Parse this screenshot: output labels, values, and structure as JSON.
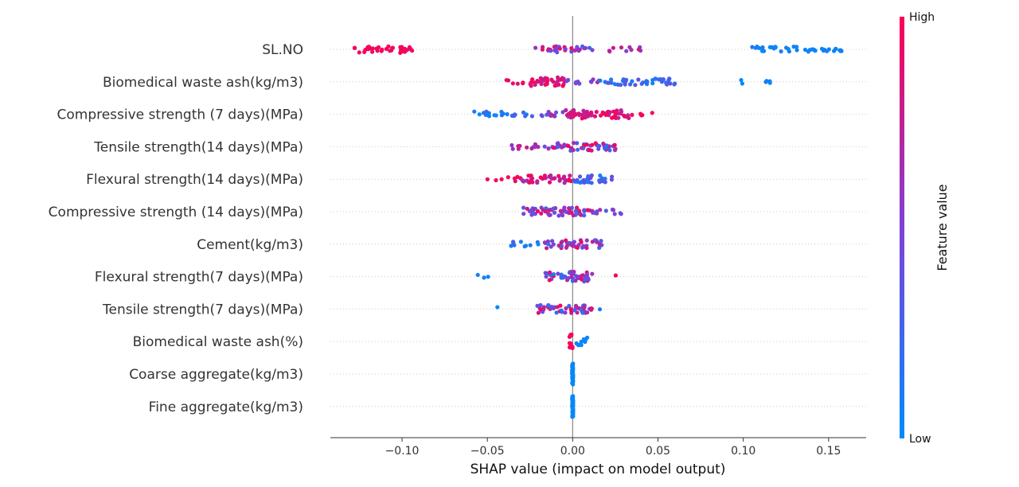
{
  "chart_data": {
    "type": "scatter",
    "subtype": "shap-beeswarm",
    "xlabel": "SHAP value (impact on model output)",
    "xlim": [
      -0.142,
      0.172
    ],
    "xticks": [
      -0.1,
      -0.05,
      0.0,
      0.05,
      0.1,
      0.15
    ],
    "xtick_labels": [
      "−0.10",
      "−0.05",
      "0.00",
      "0.05",
      "0.10",
      "0.15"
    ],
    "zero_line": 0.0,
    "grid": "dotted horizontal per feature",
    "colorbar": {
      "title": "Feature value",
      "high_label": "High",
      "low_label": "Low",
      "high_color": "#ff0052",
      "low_color": "#008bfb",
      "placement": "right"
    },
    "features": [
      {
        "name": "SL.NO",
        "clusters": [
          {
            "from": -0.128,
            "to": -0.094,
            "n": 40,
            "c": [
              0.9,
              1.0
            ]
          },
          {
            "from": -0.022,
            "to": 0.014,
            "n": 32,
            "c": [
              0.2,
              0.95
            ]
          },
          {
            "from": 0.014,
            "to": 0.04,
            "n": 10,
            "c": [
              0.3,
              0.85
            ]
          },
          {
            "from": 0.105,
            "to": 0.158,
            "n": 40,
            "c": [
              0.0,
              0.1
            ]
          }
        ]
      },
      {
        "name": "Biomedical waste ash(kg/m3)",
        "clusters": [
          {
            "from": -0.039,
            "to": -0.025,
            "n": 6,
            "c": [
              0.9,
              1.0
            ]
          },
          {
            "from": -0.025,
            "to": -0.004,
            "n": 36,
            "c": [
              0.75,
              1.0
            ]
          },
          {
            "from": -0.004,
            "to": 0.015,
            "n": 10,
            "c": [
              0.3,
              0.8
            ]
          },
          {
            "from": 0.015,
            "to": 0.06,
            "n": 45,
            "c": [
              0.0,
              0.4
            ]
          },
          {
            "from": 0.097,
            "to": 0.118,
            "n": 6,
            "c": [
              0.0,
              0.1
            ]
          }
        ]
      },
      {
        "name": "Compressive strength (7 days)(MPa)",
        "clusters": [
          {
            "from": -0.058,
            "to": -0.025,
            "n": 22,
            "c": [
              0.0,
              0.3
            ]
          },
          {
            "from": -0.025,
            "to": -0.004,
            "n": 12,
            "c": [
              0.3,
              0.8
            ]
          },
          {
            "from": -0.004,
            "to": 0.034,
            "n": 58,
            "c": [
              0.7,
              1.0
            ]
          },
          {
            "from": 0.034,
            "to": 0.047,
            "n": 5,
            "c": [
              0.9,
              1.0
            ]
          }
        ]
      },
      {
        "name": "Tensile strength(14 days)(MPa)",
        "clusters": [
          {
            "from": -0.037,
            "to": -0.012,
            "n": 14,
            "c": [
              0.4,
              0.9
            ]
          },
          {
            "from": -0.012,
            "to": 0.027,
            "n": 60,
            "c": [
              0.2,
              1.0
            ]
          }
        ]
      },
      {
        "name": "Flexural strength(14 days)(MPa)",
        "clusters": [
          {
            "from": -0.05,
            "to": -0.03,
            "n": 8,
            "c": [
              0.9,
              1.0
            ]
          },
          {
            "from": -0.03,
            "to": 0.0,
            "n": 40,
            "c": [
              0.6,
              1.0
            ]
          },
          {
            "from": 0.0,
            "to": 0.023,
            "n": 30,
            "c": [
              0.0,
              0.5
            ]
          }
        ]
      },
      {
        "name": "Compressive strength (14 days)(MPa)",
        "clusters": [
          {
            "from": -0.029,
            "to": 0.012,
            "n": 62,
            "c": [
              0.2,
              1.0
            ]
          },
          {
            "from": 0.012,
            "to": 0.029,
            "n": 10,
            "c": [
              0.3,
              0.7
            ]
          }
        ]
      },
      {
        "name": "Cement(kg/m3)",
        "clusters": [
          {
            "from": -0.037,
            "to": -0.017,
            "n": 10,
            "c": [
              0.0,
              0.3
            ]
          },
          {
            "from": -0.017,
            "to": 0.018,
            "n": 52,
            "c": [
              0.2,
              1.0
            ]
          }
        ]
      },
      {
        "name": "Flexural strength(7 days)(MPa)",
        "clusters": [
          {
            "from": -0.056,
            "to": -0.048,
            "n": 3,
            "c": [
              0.0,
              0.1
            ]
          },
          {
            "from": -0.016,
            "to": 0.012,
            "n": 56,
            "c": [
              0.1,
              1.0
            ]
          },
          {
            "from": 0.025,
            "to": 0.026,
            "n": 1,
            "c": [
              0.95,
              1.0
            ]
          }
        ]
      },
      {
        "name": "Tensile strength(7 days)(MPa)",
        "clusters": [
          {
            "from": -0.045,
            "to": -0.044,
            "n": 1,
            "c": [
              0.0,
              0.05
            ]
          },
          {
            "from": -0.021,
            "to": 0.016,
            "n": 52,
            "c": [
              0.1,
              1.0
            ]
          }
        ]
      },
      {
        "name": "Biomedical waste ash(%)",
        "clusters": [
          {
            "from": -0.002,
            "to": 0.0,
            "n": 12,
            "c": [
              0.9,
              1.0
            ]
          },
          {
            "from": 0.002,
            "to": 0.009,
            "n": 10,
            "c": [
              0.0,
              0.05
            ]
          }
        ]
      },
      {
        "name": "Coarse aggregate(kg/m3)",
        "clusters": [
          {
            "from": 0.0,
            "to": 0.0,
            "n": 45,
            "c": [
              0.0,
              0.05
            ]
          }
        ]
      },
      {
        "name": "Fine aggregate(kg/m3)",
        "clusters": [
          {
            "from": 0.0,
            "to": 0.0,
            "n": 45,
            "c": [
              0.0,
              0.05
            ]
          }
        ]
      }
    ]
  }
}
